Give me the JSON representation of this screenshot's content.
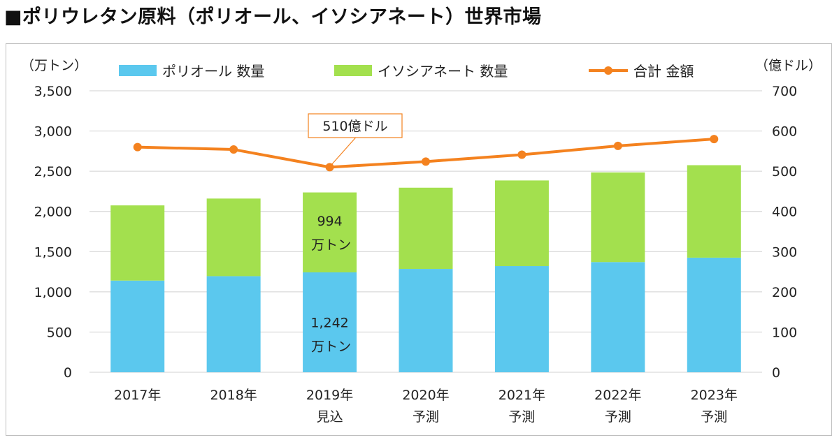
{
  "page_title": "■ポリウレタン原料（ポリオール、イソシアネート）世界市場",
  "chart_data": {
    "type": "bar",
    "stacked": true,
    "title": "■ポリウレタン原料（ポリオール、イソシアネート）世界市場",
    "categories": [
      [
        "2017年"
      ],
      [
        "2018年"
      ],
      [
        "2019年",
        "見込"
      ],
      [
        "2020年",
        "予測"
      ],
      [
        "2021年",
        "予測"
      ],
      [
        "2022年",
        "予測"
      ],
      [
        "2023年",
        "予測"
      ]
    ],
    "left_axis": {
      "unit": "（万トン）",
      "min": 0,
      "max": 3500,
      "step": 500,
      "tick_labels": [
        "0",
        "500",
        "1,000",
        "1,500",
        "2,000",
        "2,500",
        "3,000",
        "3,500"
      ]
    },
    "right_axis": {
      "unit": "（億ドル）",
      "min": 0,
      "max": 700,
      "step": 100,
      "tick_labels": [
        "0",
        "100",
        "200",
        "300",
        "400",
        "500",
        "600",
        "700"
      ]
    },
    "series": [
      {
        "name": "ポリオール 数量",
        "kind": "bar",
        "axis": "left",
        "color": "#5bc8ee",
        "values": [
          1140,
          1195,
          1242,
          1285,
          1320,
          1370,
          1425
        ]
      },
      {
        "name": "イソシアネート 数量",
        "kind": "bar",
        "axis": "left",
        "color": "#a3e04e",
        "values": [
          935,
          965,
          994,
          1010,
          1065,
          1115,
          1150
        ]
      },
      {
        "name": "合計 金額",
        "kind": "line",
        "axis": "right",
        "color": "#f4821f",
        "values": [
          560,
          554,
          510,
          524,
          541,
          563,
          580
        ]
      }
    ],
    "annotations": {
      "line_callout": "510億ドル",
      "isocyanate_value": "994",
      "isocyanate_unit": "万トン",
      "polyol_value": "1,242",
      "polyol_unit": "万トン"
    },
    "legend_position": "top-center",
    "grid": true
  }
}
